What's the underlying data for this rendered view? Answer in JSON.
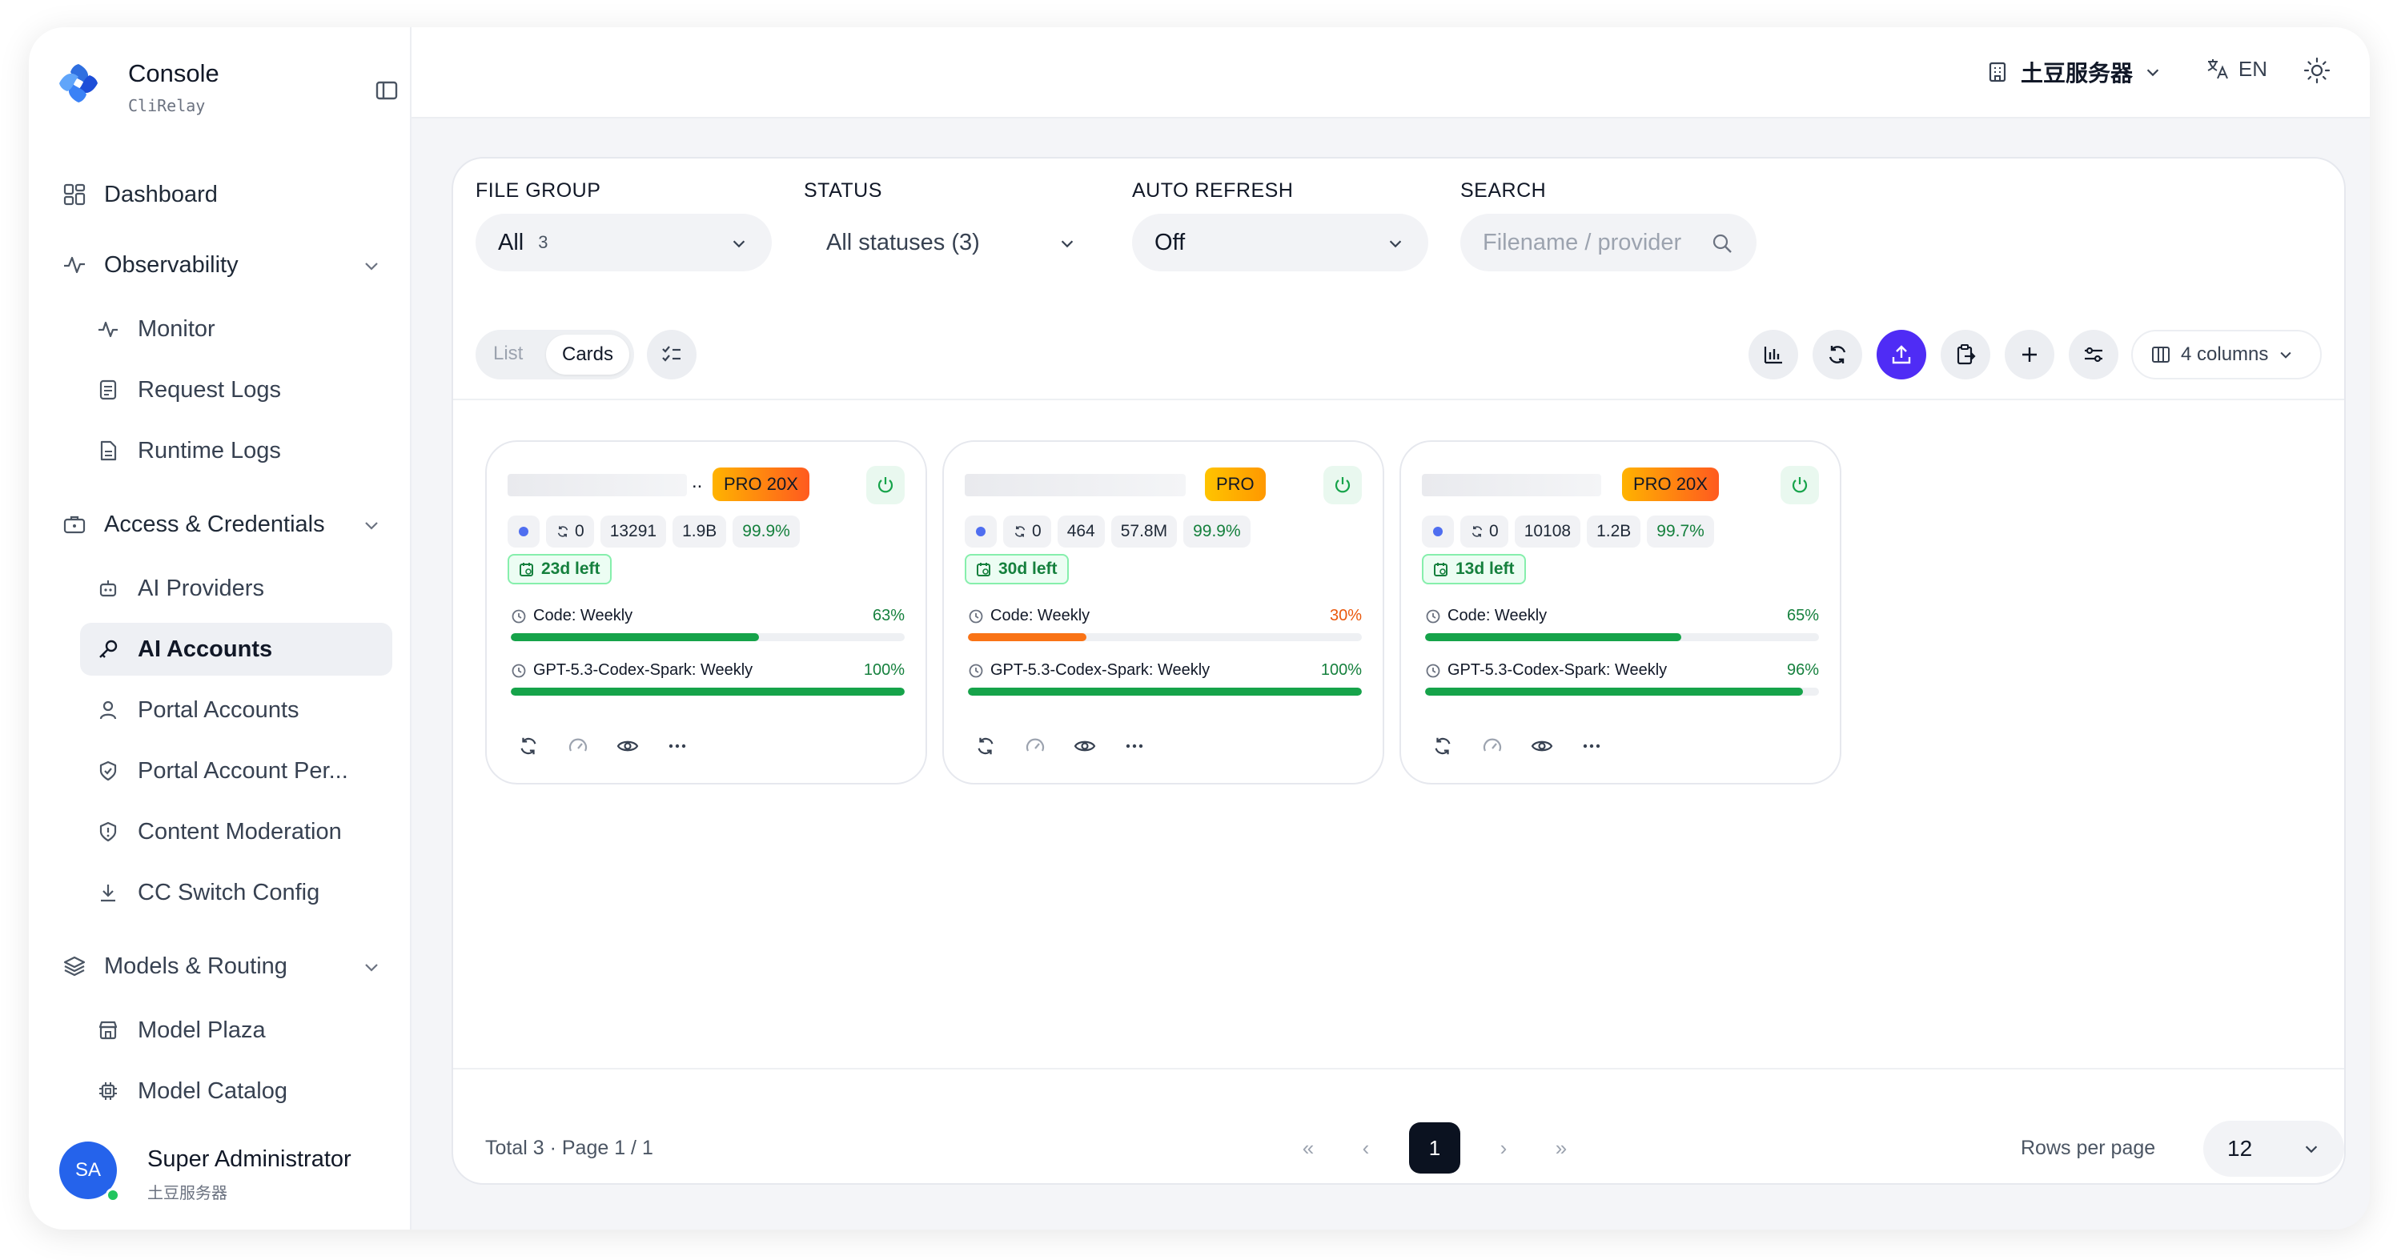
{
  "app": {
    "title": "Console",
    "subtitle": "CliRelay"
  },
  "topbar": {
    "server_name": "土豆服务器",
    "language": "EN"
  },
  "sidebar": {
    "dashboard": "Dashboard",
    "observability": "Observability",
    "monitor": "Monitor",
    "request_logs": "Request Logs",
    "runtime_logs": "Runtime Logs",
    "access": "Access & Credentials",
    "ai_providers": "AI Providers",
    "ai_accounts": "AI Accounts",
    "portal_accounts": "Portal Accounts",
    "portal_account_per": "Portal Account Per...",
    "content_moderation": "Content Moderation",
    "cc_switch": "CC Switch Config",
    "models_routing": "Models & Routing",
    "model_plaza": "Model Plaza",
    "model_catalog": "Model Catalog"
  },
  "user": {
    "initials": "SA",
    "name": "Super Administrator",
    "org": "土豆服务器"
  },
  "filters": {
    "file_group_label": "FILE GROUP",
    "file_group_value": "All",
    "file_group_count": "3",
    "status_label": "STATUS",
    "status_value": "All statuses (3)",
    "auto_refresh_label": "AUTO REFRESH",
    "auto_refresh_value": "Off",
    "search_label": "SEARCH",
    "search_placeholder": "Filename / provider"
  },
  "toolbar": {
    "list_label": "List",
    "cards_label": "Cards",
    "columns_label": "4 columns"
  },
  "cards": [
    {
      "plan": "PRO 20X",
      "retries": "0",
      "requests": "13291",
      "tokens": "1.9B",
      "success": "99.9%",
      "days_left": "23d left",
      "quota1_name": "Code: Weekly",
      "quota1_pct": "63%",
      "quota1_value": 63,
      "quota2_name": "GPT-5.3-Codex-Spark: Weekly",
      "quota2_pct": "100%",
      "quota2_value": 100
    },
    {
      "plan": "PRO",
      "retries": "0",
      "requests": "464",
      "tokens": "57.8M",
      "success": "99.9%",
      "days_left": "30d left",
      "quota1_name": "Code: Weekly",
      "quota1_pct": "30%",
      "quota1_value": 30,
      "quota2_name": "GPT-5.3-Codex-Spark: Weekly",
      "quota2_pct": "100%",
      "quota2_value": 100
    },
    {
      "plan": "PRO 20X",
      "retries": "0",
      "requests": "10108",
      "tokens": "1.2B",
      "success": "99.7%",
      "days_left": "13d left",
      "quota1_name": "Code: Weekly",
      "quota1_pct": "65%",
      "quota1_value": 65,
      "quota2_name": "GPT-5.3-Codex-Spark: Weekly",
      "quota2_pct": "96%",
      "quota2_value": 96
    }
  ],
  "footer": {
    "total_info": "Total 3 · Page 1 / 1",
    "current_page": "1",
    "rows_per_page_label": "Rows per page",
    "rows_per_page_value": "12"
  },
  "colors": {
    "accent": "#4f2cf5",
    "success": "#16a34a",
    "warning": "#f97316"
  }
}
